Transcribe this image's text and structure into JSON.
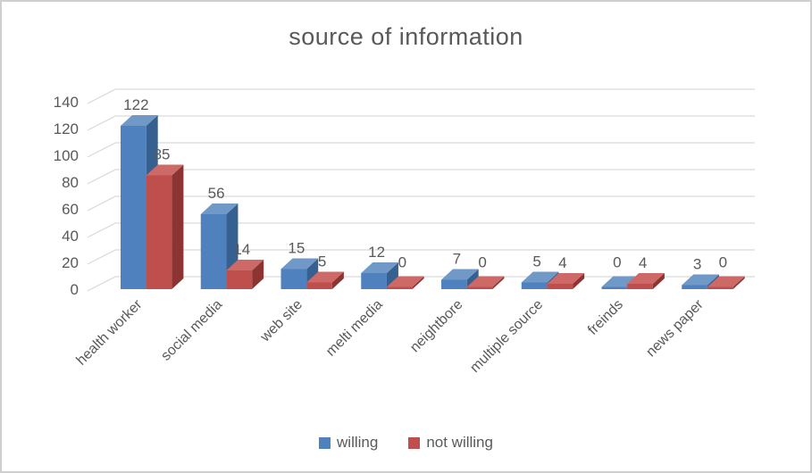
{
  "chart_data": {
    "type": "bar",
    "variant": "3d-clustered-column",
    "title": "source of information",
    "categories": [
      "health worker",
      "social media",
      "web site",
      "melti media",
      "neightbore",
      "multiple source",
      "freinds",
      "news paper"
    ],
    "series": [
      {
        "name": "willing",
        "color": "#4E81BD",
        "color_top": "#7099C8",
        "color_side": "#35608F",
        "values": [
          122,
          56,
          15,
          12,
          7,
          5,
          0,
          3
        ]
      },
      {
        "name": "not willing",
        "color": "#BF4F4D",
        "color_top": "#CD6A67",
        "color_side": "#8C3431",
        "values": [
          85,
          14,
          5,
          0,
          0,
          4,
          4,
          0
        ]
      }
    ],
    "ylim": [
      0,
      140
    ],
    "yticks": [
      0,
      20,
      40,
      60,
      80,
      100,
      120,
      140
    ],
    "grid": true,
    "gridline_color": "#d9d9d9",
    "text_color": "#595959",
    "data_labels": true,
    "legend_position": "bottom"
  }
}
